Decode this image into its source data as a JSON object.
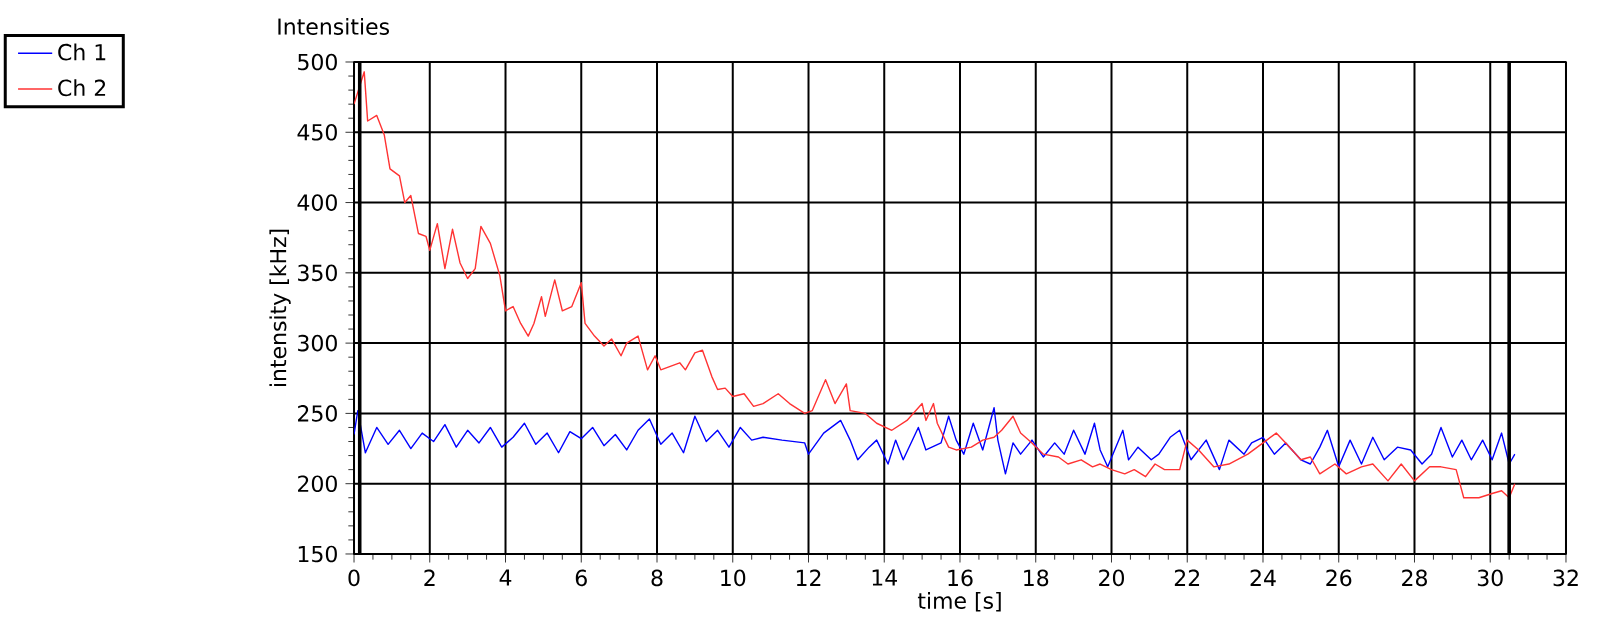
{
  "chart_data": {
    "type": "line",
    "title": "Intensities",
    "xlabel": "time [s]",
    "ylabel": "intensity [kHz]",
    "xlim": [
      0,
      32
    ],
    "ylim": [
      150,
      500
    ],
    "xticks": [
      0,
      2,
      4,
      6,
      8,
      10,
      12,
      14,
      16,
      18,
      20,
      22,
      24,
      26,
      28,
      30,
      32
    ],
    "yticks": [
      150,
      200,
      250,
      300,
      350,
      400,
      450,
      500
    ],
    "grid": true,
    "legend": "top left",
    "marker": "none",
    "line_style": "solid",
    "ref_lines": [
      {
        "axis": "x",
        "value": 0.15,
        "color": "#000000"
      },
      {
        "axis": "x",
        "value": 30.5,
        "color": "#000000"
      }
    ],
    "series": [
      {
        "name": "Ch 1",
        "color": "#0000ff",
        "x": [
          0,
          0.1,
          0.3,
          0.6,
          0.9,
          1.2,
          1.5,
          1.8,
          2.1,
          2.4,
          2.7,
          3.0,
          3.3,
          3.6,
          3.9,
          4.2,
          4.5,
          4.8,
          5.1,
          5.4,
          5.7,
          6.0,
          6.3,
          6.6,
          6.9,
          7.2,
          7.5,
          7.8,
          8.1,
          8.4,
          8.7,
          9.0,
          9.3,
          9.6,
          9.9,
          10.2,
          10.5,
          10.8,
          11.3,
          11.9,
          12.0,
          12.4,
          12.85,
          13.1,
          13.3,
          13.6,
          13.8,
          14.1,
          14.3,
          14.5,
          14.9,
          15.1,
          15.5,
          15.7,
          15.9,
          16.1,
          16.35,
          16.6,
          16.9,
          17.0,
          17.2,
          17.4,
          17.6,
          17.9,
          18.2,
          18.5,
          18.75,
          19.0,
          19.3,
          19.55,
          19.7,
          19.9,
          20.3,
          20.45,
          20.7,
          21.05,
          21.25,
          21.55,
          21.8,
          22.1,
          22.5,
          22.85,
          23.1,
          23.5,
          23.7,
          24.0,
          24.3,
          24.6,
          25.0,
          25.25,
          25.5,
          25.7,
          26.0,
          26.3,
          26.6,
          26.9,
          27.2,
          27.55,
          27.9,
          28.2,
          28.45,
          28.7,
          29.0,
          29.25,
          29.5,
          29.8,
          30.05,
          30.3,
          30.5,
          30.65
        ],
        "values": [
          235,
          252,
          222,
          240,
          228,
          238,
          225,
          236,
          230,
          242,
          226,
          238,
          229,
          240,
          226,
          233,
          243,
          228,
          236,
          222,
          237,
          232,
          240,
          227,
          235,
          224,
          238,
          246,
          228,
          236,
          222,
          248,
          230,
          238,
          226,
          240,
          231,
          233,
          231,
          229,
          221,
          236,
          245,
          231,
          217,
          226,
          231,
          214,
          231,
          217,
          240,
          224,
          229,
          248,
          231,
          221,
          243,
          224,
          254,
          231,
          207,
          229,
          221,
          231,
          219,
          229,
          221,
          238,
          221,
          243,
          224,
          212,
          238,
          217,
          226,
          217,
          221,
          233,
          238,
          217,
          231,
          210,
          231,
          221,
          229,
          233,
          221,
          229,
          217,
          214,
          226,
          238,
          212,
          231,
          214,
          233,
          217,
          226,
          224,
          214,
          221,
          240,
          219,
          231,
          217,
          231,
          217,
          236,
          214,
          221
        ]
      },
      {
        "name": "Ch 2",
        "color": "#ff3333",
        "x": [
          0,
          0.27,
          0.36,
          0.6,
          0.8,
          0.95,
          1.2,
          1.34,
          1.5,
          1.7,
          1.9,
          2.0,
          2.2,
          2.4,
          2.6,
          2.8,
          3.0,
          3.2,
          3.35,
          3.6,
          3.85,
          4.0,
          4.2,
          4.4,
          4.6,
          4.75,
          4.95,
          5.05,
          5.3,
          5.5,
          5.75,
          6.0,
          6.1,
          6.35,
          6.6,
          6.8,
          7.05,
          7.2,
          7.5,
          7.75,
          7.95,
          8.1,
          8.6,
          8.75,
          9.0,
          9.2,
          9.45,
          9.6,
          9.8,
          10.0,
          10.3,
          10.55,
          10.8,
          11.2,
          11.5,
          11.9,
          12.1,
          12.45,
          12.7,
          13.0,
          13.1,
          13.5,
          13.8,
          14.2,
          14.6,
          15.0,
          15.1,
          15.3,
          15.4,
          15.7,
          15.9,
          16.3,
          16.6,
          16.9,
          17.1,
          17.4,
          17.6,
          17.9,
          18.2,
          18.6,
          18.85,
          19.2,
          19.5,
          19.7,
          20.0,
          20.35,
          20.6,
          20.9,
          21.15,
          21.4,
          21.8,
          22.0,
          22.3,
          22.7,
          23.1,
          23.6,
          24.1,
          24.35,
          24.6,
          25.0,
          25.25,
          25.5,
          25.9,
          26.2,
          26.6,
          26.9,
          27.3,
          27.65,
          28.0,
          28.4,
          28.7,
          29.1,
          29.3,
          29.7,
          30.05,
          30.3,
          30.5,
          30.65
        ],
        "values": [
          470,
          493,
          458,
          462,
          448,
          424,
          419,
          400,
          405,
          378,
          376,
          366,
          385,
          353,
          381,
          357,
          346,
          353,
          383,
          371,
          348,
          323,
          326,
          314,
          305,
          314,
          333,
          319,
          345,
          323,
          326,
          343,
          314,
          305,
          298,
          303,
          291,
          300,
          305,
          281,
          291,
          281,
          286,
          281,
          293,
          295,
          276,
          267,
          268,
          262,
          264,
          255,
          257,
          264,
          257,
          250,
          252,
          274,
          257,
          271,
          252,
          250,
          243,
          238,
          245,
          257,
          245,
          257,
          243,
          226,
          224,
          226,
          231,
          233,
          238,
          248,
          236,
          229,
          221,
          219,
          214,
          217,
          212,
          214,
          210,
          207,
          210,
          205,
          214,
          210,
          210,
          231,
          224,
          212,
          214,
          221,
          231,
          236,
          229,
          217,
          219,
          207,
          214,
          207,
          212,
          214,
          202,
          214,
          202,
          212,
          212,
          210,
          190,
          190,
          193,
          195,
          190,
          200
        ]
      }
    ]
  }
}
